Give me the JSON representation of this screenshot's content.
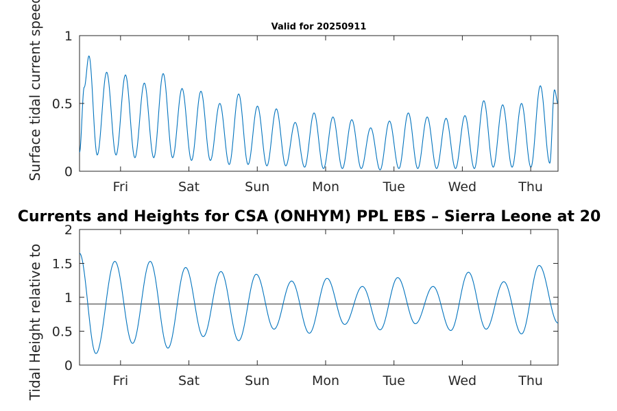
{
  "figure_title": "Currents and Heights for CSA (ONHYM) PPL EBS  – Sierra Leone at 20",
  "chart_data": [
    {
      "type": "line",
      "title": "Valid for 20250911",
      "ylabel": "Surface tidal current speed, kn",
      "xlabel": "",
      "xlim": [
        0,
        7
      ],
      "ylim": [
        0,
        1
      ],
      "yticks": [
        0,
        0.5,
        1
      ],
      "ytick_labels": [
        "0",
        "0.5",
        "1"
      ],
      "xticks": [
        0.6,
        1.6,
        2.6,
        3.6,
        4.6,
        5.6,
        6.6
      ],
      "xtick_labels": [
        "Fri",
        "Sat",
        "Sun",
        "Mon",
        "Tue",
        "Wed",
        "Thu"
      ],
      "grid": false,
      "series": [
        {
          "color": "#0072BD",
          "x": [
            0,
            0.069,
            0.138,
            0.259,
            0.397,
            0.534,
            0.672,
            0.81,
            0.948,
            1.086,
            1.224,
            1.362,
            1.5,
            1.638,
            1.776,
            1.914,
            2.052,
            2.19,
            2.328,
            2.466,
            2.603,
            2.741,
            2.879,
            3.017,
            3.155,
            3.293,
            3.431,
            3.569,
            3.707,
            3.845,
            3.983,
            4.121,
            4.259,
            4.397,
            4.534,
            4.672,
            4.81,
            4.948,
            5.086,
            5.224,
            5.362,
            5.5,
            5.638,
            5.776,
            5.914,
            6.052,
            6.19,
            6.328,
            6.466,
            6.603,
            6.741,
            6.879,
            6.948,
            7.0
          ],
          "y": [
            0.14,
            0.62,
            0.85,
            0.12,
            0.73,
            0.12,
            0.71,
            0.1,
            0.65,
            0.1,
            0.72,
            0.1,
            0.61,
            0.08,
            0.59,
            0.08,
            0.5,
            0.05,
            0.57,
            0.05,
            0.48,
            0.04,
            0.46,
            0.04,
            0.36,
            0.03,
            0.43,
            0.02,
            0.4,
            0.02,
            0.38,
            0.02,
            0.32,
            0.01,
            0.37,
            0.02,
            0.43,
            0.02,
            0.4,
            0.02,
            0.39,
            0.02,
            0.41,
            0.02,
            0.52,
            0.03,
            0.49,
            0.03,
            0.5,
            0.03,
            0.63,
            0.06,
            0.6,
            0.5
          ]
        }
      ]
    },
    {
      "type": "line",
      "title": "",
      "ylabel": "Tidal Height relative to",
      "xlabel": "",
      "xlim": [
        0,
        7
      ],
      "ylim": [
        0,
        2
      ],
      "yticks": [
        0,
        0.5,
        1,
        1.5,
        2
      ],
      "ytick_labels": [
        "0",
        "0.5",
        "1",
        "1.5",
        "2"
      ],
      "xticks": [
        0.6,
        1.6,
        2.6,
        3.6,
        4.6,
        5.6,
        6.6
      ],
      "xtick_labels": [
        "Fri",
        "Sat",
        "Sun",
        "Mon",
        "Tue",
        "Wed",
        "Thu"
      ],
      "grid": false,
      "reference_line": 0.9,
      "series": [
        {
          "color": "#0072BD",
          "x": [
            0,
            0.24,
            0.517,
            0.776,
            1.034,
            1.293,
            1.552,
            1.81,
            2.069,
            2.328,
            2.586,
            2.845,
            3.103,
            3.362,
            3.621,
            3.879,
            4.138,
            4.397,
            4.655,
            4.914,
            5.172,
            5.431,
            5.69,
            5.948,
            6.207,
            6.466,
            6.724,
            7.0
          ],
          "y": [
            1.65,
            0.17,
            1.53,
            0.32,
            1.53,
            0.25,
            1.44,
            0.42,
            1.38,
            0.36,
            1.34,
            0.53,
            1.24,
            0.47,
            1.28,
            0.6,
            1.16,
            0.52,
            1.29,
            0.61,
            1.16,
            0.51,
            1.37,
            0.53,
            1.23,
            0.46,
            1.47,
            0.62
          ]
        }
      ]
    }
  ]
}
